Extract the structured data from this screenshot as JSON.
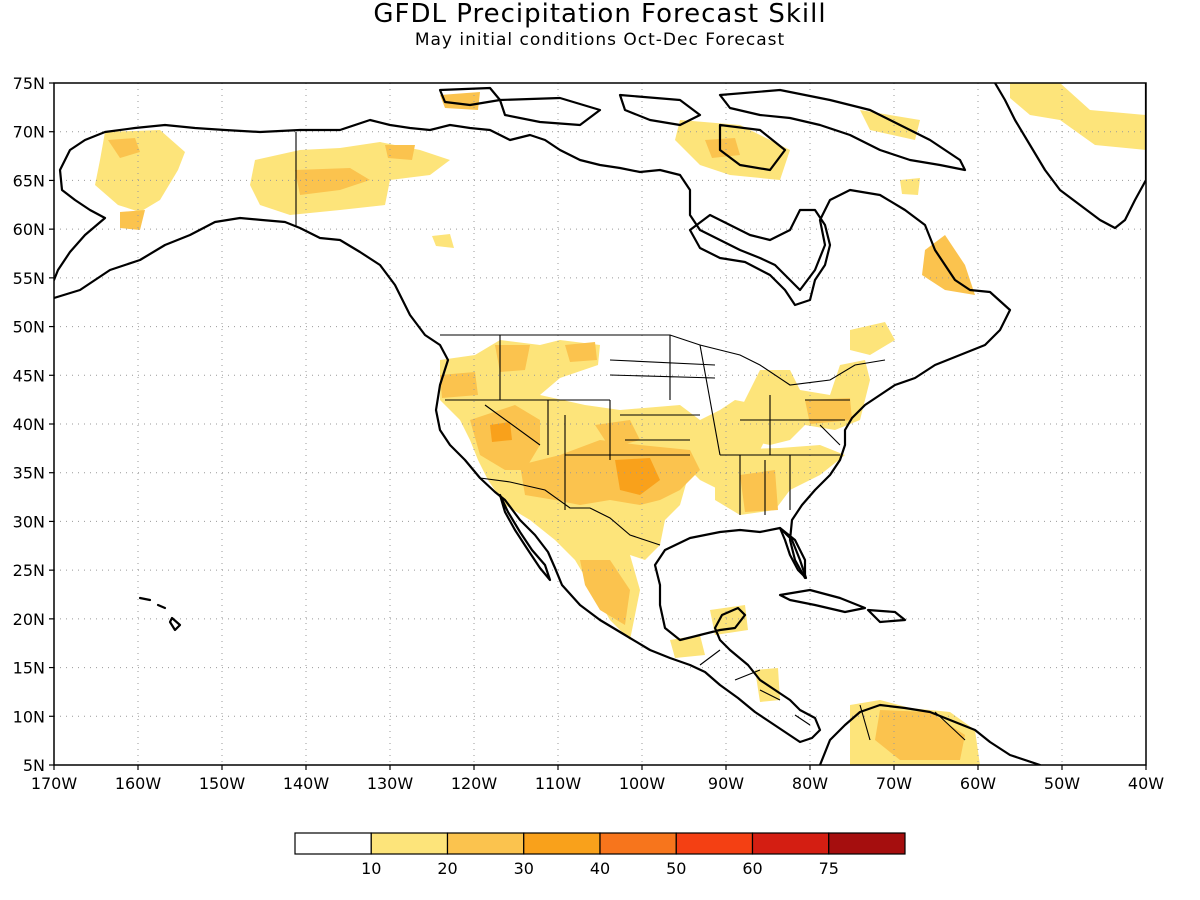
{
  "title": "GFDL Precipitation Forecast Skill",
  "subtitle": "May initial conditions  Oct-Dec Forecast",
  "map": {
    "lat_range": [
      5,
      75
    ],
    "lon_range": [
      -170,
      -40
    ],
    "lat_ticks": [
      {
        "value": 75,
        "label": "75N"
      },
      {
        "value": 70,
        "label": "70N"
      },
      {
        "value": 65,
        "label": "65N"
      },
      {
        "value": 60,
        "label": "60N"
      },
      {
        "value": 55,
        "label": "55N"
      },
      {
        "value": 50,
        "label": "50N"
      },
      {
        "value": 45,
        "label": "45N"
      },
      {
        "value": 40,
        "label": "40N"
      },
      {
        "value": 35,
        "label": "35N"
      },
      {
        "value": 30,
        "label": "30N"
      },
      {
        "value": 25,
        "label": "25N"
      },
      {
        "value": 20,
        "label": "20N"
      },
      {
        "value": 15,
        "label": "15N"
      },
      {
        "value": 10,
        "label": "10N"
      },
      {
        "value": 5,
        "label": "5N"
      }
    ],
    "lon_ticks": [
      {
        "value": -170,
        "label": "170W"
      },
      {
        "value": -160,
        "label": "160W"
      },
      {
        "value": -150,
        "label": "150W"
      },
      {
        "value": -140,
        "label": "140W"
      },
      {
        "value": -130,
        "label": "130W"
      },
      {
        "value": -120,
        "label": "120W"
      },
      {
        "value": -110,
        "label": "110W"
      },
      {
        "value": -100,
        "label": "100W"
      },
      {
        "value": -90,
        "label": "90W"
      },
      {
        "value": -80,
        "label": "80W"
      },
      {
        "value": -70,
        "label": "70W"
      },
      {
        "value": -60,
        "label": "60W"
      },
      {
        "value": -50,
        "label": "50W"
      },
      {
        "value": -40,
        "label": "40W"
      }
    ],
    "grid": true
  },
  "colorbar": {
    "labels": [
      "10",
      "20",
      "30",
      "40",
      "50",
      "60",
      "75"
    ],
    "colors": [
      "#ffffff",
      "#fde47a",
      "#fbc34e",
      "#f9a11b",
      "#f7751c",
      "#f44013",
      "#d41e12",
      "#a50e0e"
    ]
  }
}
